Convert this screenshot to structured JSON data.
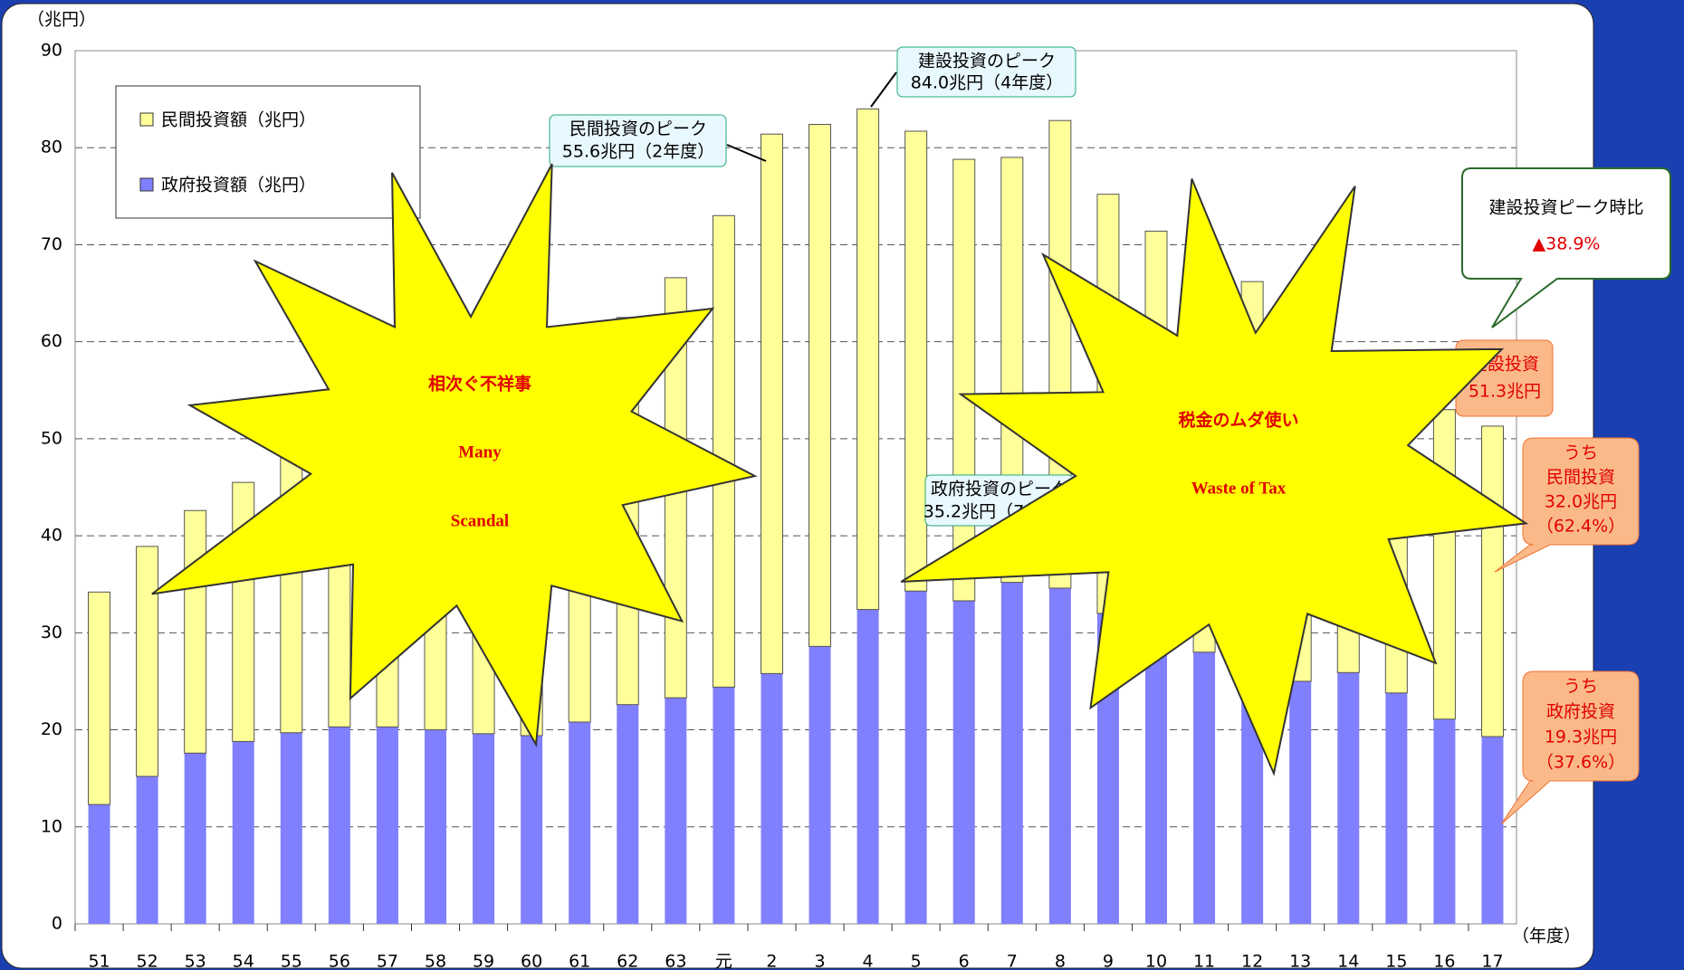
{
  "chart_data": {
    "type": "stacked_bar",
    "y_label": "（兆円）",
    "x_label": "（年度）",
    "categories": [
      "51",
      "52",
      "53",
      "54",
      "55",
      "56",
      "57",
      "58",
      "59",
      "60",
      "61",
      "62",
      "63",
      "元",
      "2",
      "3",
      "4",
      "5",
      "6",
      "7",
      "8",
      "9",
      "10",
      "11",
      "12",
      "13",
      "14",
      "15",
      "16",
      "17"
    ],
    "series": [
      {
        "name": "政府投資額（兆円）",
        "color": "#8080ff",
        "values": [
          12.3,
          15.2,
          17.6,
          18.8,
          19.7,
          20.3,
          20.3,
          20.0,
          19.6,
          19.4,
          20.8,
          22.6,
          23.3,
          24.4,
          25.8,
          28.6,
          32.4,
          34.3,
          33.3,
          35.2,
          34.6,
          32.0,
          30.0,
          28.0,
          29.9,
          25.0,
          25.9,
          23.8,
          21.1,
          19.3
        ]
      },
      {
        "name": "民間投資額（兆円）",
        "color": "#ffff99",
        "values": [
          21.9,
          23.7,
          25.0,
          26.7,
          28.3,
          29.7,
          31.7,
          34.0,
          36.4,
          38.6,
          39.7,
          39.9,
          43.3,
          48.6,
          55.6,
          53.8,
          51.6,
          47.4,
          45.5,
          43.8,
          48.2,
          43.2,
          41.4,
          40.4,
          36.3,
          36.0,
          31.6,
          32.2,
          31.9,
          32.0
        ]
      }
    ],
    "ylim": [
      0,
      90
    ],
    "yticks": [
      0,
      10,
      20,
      30,
      40,
      50,
      60,
      70,
      80,
      90
    ],
    "grid": true,
    "annotations": {
      "construction_peak": [
        "建設投資のピーク",
        "84.0兆円（4年度）"
      ],
      "private_peak": [
        "民間投資のピーク",
        "55.6兆円（2年度）"
      ],
      "government_peak": [
        "政府投資のピーク",
        "35.2兆円（7年度）"
      ],
      "ratio": [
        "建設投資ピーク時比",
        "▲38.9%"
      ],
      "latest_total": [
        "建設投資",
        "51.3兆円"
      ],
      "latest_private": [
        "うち",
        "民間投資",
        "32.0兆円",
        "（62.4%）"
      ],
      "latest_government": [
        "うち",
        "政府投資",
        "19.3兆円",
        "（37.6%）"
      ],
      "burst_left": [
        "相次ぐ不祥事",
        "Many",
        "Scandal"
      ],
      "burst_right": [
        "税金のムダ使い",
        "Waste of Tax"
      ]
    }
  }
}
